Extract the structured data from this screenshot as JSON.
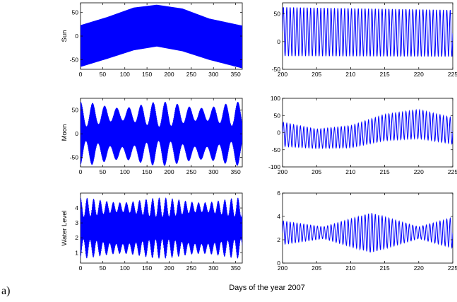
{
  "figure": {
    "panel_label": "a)",
    "xlabel": "Days of the year 2007",
    "line_color": "#0000ff"
  },
  "chart_data": [
    {
      "id": "sun-full",
      "type": "line",
      "ylabel": "Sun",
      "xlim": [
        0,
        365
      ],
      "ylim": [
        -70,
        70
      ],
      "xticks": [
        0,
        50,
        100,
        150,
        200,
        250,
        300,
        350
      ],
      "yticks": [
        -50,
        0,
        50
      ],
      "series": [
        {
          "style": "dense-oscillation",
          "envelope_x": [
            0,
            60,
            120,
            172,
            230,
            290,
            365
          ],
          "upper": [
            23,
            40,
            60,
            66,
            58,
            37,
            22
          ],
          "lower": [
            -65,
            -48,
            -30,
            -22,
            -32,
            -50,
            -68
          ]
        }
      ]
    },
    {
      "id": "sun-zoom",
      "type": "line",
      "xlim": [
        200,
        225
      ],
      "ylim": [
        -50,
        70
      ],
      "xticks": [
        200,
        205,
        210,
        215,
        220,
        225
      ],
      "yticks": [
        -50,
        0,
        50
      ],
      "series": [
        {
          "style": "oscillation",
          "period_days": 0.5,
          "x_start": 200,
          "x_end": 225,
          "center": [
            18,
            15
          ],
          "amplitude": [
            44,
            42
          ]
        }
      ]
    },
    {
      "id": "moon-full",
      "type": "line",
      "ylabel": "Moon",
      "xlim": [
        0,
        365
      ],
      "ylim": [
        -70,
        75
      ],
      "xticks": [
        0,
        50,
        100,
        150,
        200,
        250,
        300,
        350
      ],
      "yticks": [
        -50,
        0,
        50
      ],
      "series": [
        {
          "style": "dense-oscillation",
          "envelope_period_days": 27.3,
          "upper_range": [
            15,
            68
          ],
          "lower_range": [
            -68,
            -15
          ]
        }
      ]
    },
    {
      "id": "moon-zoom",
      "type": "line",
      "xlim": [
        200,
        225
      ],
      "ylim": [
        -100,
        100
      ],
      "xticks": [
        200,
        205,
        210,
        215,
        220,
        225
      ],
      "yticks": [
        -100,
        -50,
        0,
        50,
        100
      ],
      "series": [
        {
          "style": "oscillation",
          "period_days": 0.5,
          "x_start": 200,
          "x_end": 225,
          "center_x": [
            200,
            205,
            210,
            215,
            220,
            225
          ],
          "center": [
            -5,
            -18,
            -12,
            15,
            25,
            5
          ],
          "amplitude_x": [
            200,
            205,
            210,
            215,
            220,
            225
          ],
          "amplitude": [
            35,
            28,
            32,
            38,
            42,
            38
          ]
        }
      ]
    },
    {
      "id": "water-full",
      "type": "line",
      "ylabel": "Water Level",
      "xlim": [
        0,
        365
      ],
      "ylim": [
        0.3,
        5
      ],
      "xticks": [
        0,
        50,
        100,
        150,
        200,
        250,
        300,
        350
      ],
      "yticks": [
        1,
        2,
        3,
        4
      ],
      "series": [
        {
          "style": "dense-oscillation",
          "envelope_period_days": 14.8,
          "upper_range": [
            3.4,
            4.7
          ],
          "lower_range": [
            0.6,
            1.9
          ]
        }
      ]
    },
    {
      "id": "water-zoom",
      "type": "line",
      "xlim": [
        200,
        225
      ],
      "ylim": [
        0,
        6
      ],
      "xticks": [
        200,
        205,
        210,
        215,
        220,
        225
      ],
      "yticks": [
        0,
        2,
        4,
        6
      ],
      "series": [
        {
          "style": "oscillation",
          "period_days": 0.5,
          "x_start": 200,
          "x_end": 225,
          "center": [
            2.6,
            2.6
          ],
          "amplitude_x": [
            200,
            206,
            213,
            220,
            225
          ],
          "amplitude": [
            1.0,
            0.5,
            1.7,
            0.5,
            1.3
          ]
        }
      ]
    }
  ]
}
